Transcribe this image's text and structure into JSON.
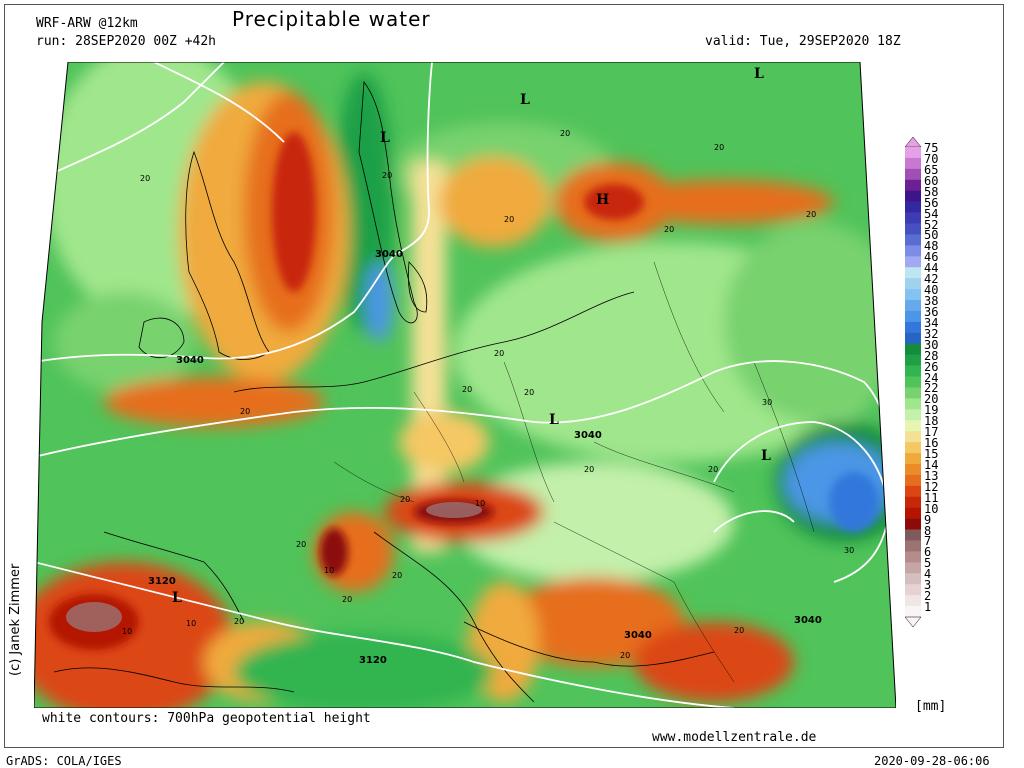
{
  "header": {
    "model": "WRF-ARW @12km",
    "title": "Precipitable water",
    "run": "run: 28SEP2020 00Z +42h",
    "valid": "valid: Tue, 29SEP2020 18Z"
  },
  "footer": {
    "contours_note": "white contours: 700hPa geopotential height",
    "website": "www.modellzentrale.de",
    "software": "GrADS: COLA/IGES",
    "timestamp": "2020-09-28-06:06",
    "author": "(c) Janek Zimmer"
  },
  "colorbar": {
    "unit": "[mm]",
    "levels": [
      "75",
      "70",
      "65",
      "60",
      "58",
      "56",
      "54",
      "52",
      "50",
      "48",
      "46",
      "44",
      "42",
      "40",
      "38",
      "36",
      "34",
      "32",
      "30",
      "28",
      "26",
      "24",
      "22",
      "20",
      "19",
      "18",
      "17",
      "16",
      "15",
      "14",
      "13",
      "12",
      "11",
      "10",
      "9",
      "8",
      "7",
      "6",
      "5",
      "4",
      "3",
      "2",
      "1"
    ],
    "colors": [
      "#e6a0e6",
      "#c878d2",
      "#a050b4",
      "#6e1e96",
      "#3c148c",
      "#3228a0",
      "#3c3cb4",
      "#4650be",
      "#5a6ed2",
      "#7d8ce6",
      "#a0aaf0",
      "#bee6f0",
      "#a0d2f0",
      "#82c3f0",
      "#64aaeb",
      "#4b96e6",
      "#3278dc",
      "#2864c8",
      "#148c3c",
      "#1ea046",
      "#32b450",
      "#50c35a",
      "#78d26e",
      "#a0e68c",
      "#c3f0aa",
      "#e6f5b4",
      "#f5e196",
      "#f5c864",
      "#f0aa3c",
      "#eb8c28",
      "#e66e1e",
      "#dc4614",
      "#c8280a",
      "#b41400",
      "#8c0a0a",
      "#825a5a",
      "#9b7373",
      "#b48c8c",
      "#c8a5a5",
      "#d7bebe",
      "#e6d2d2",
      "#f0e6e6",
      "#faf5f5"
    ]
  },
  "map_labels": {
    "pressure_markers": [
      {
        "id": "low-north-russia",
        "text": "L"
      },
      {
        "id": "low-baltic",
        "text": "L"
      },
      {
        "id": "low-norway",
        "text": "L"
      },
      {
        "id": "high-baltic",
        "text": "H"
      },
      {
        "id": "low-poland",
        "text": "L"
      },
      {
        "id": "low-ukraine",
        "text": "L"
      },
      {
        "id": "low-spain",
        "text": "L"
      }
    ],
    "height_contours": [
      {
        "id": "c3040-denmark",
        "text": "3040"
      },
      {
        "id": "c3040-britain",
        "text": "3040"
      },
      {
        "id": "c3040-poland",
        "text": "3040"
      },
      {
        "id": "c3040-balkans",
        "text": "3040"
      },
      {
        "id": "c3040-east",
        "text": "3040"
      },
      {
        "id": "c3120-spain",
        "text": "3120"
      },
      {
        "id": "c3120-med",
        "text": "3120"
      }
    ],
    "value_labels": [
      "20",
      "20",
      "20",
      "20",
      "20",
      "20",
      "20",
      "20",
      "20",
      "20",
      "20",
      "20",
      "20",
      "20",
      "20",
      "20",
      "20",
      "20",
      "20",
      "10",
      "10",
      "10",
      "10",
      "20",
      "30",
      "30"
    ]
  }
}
